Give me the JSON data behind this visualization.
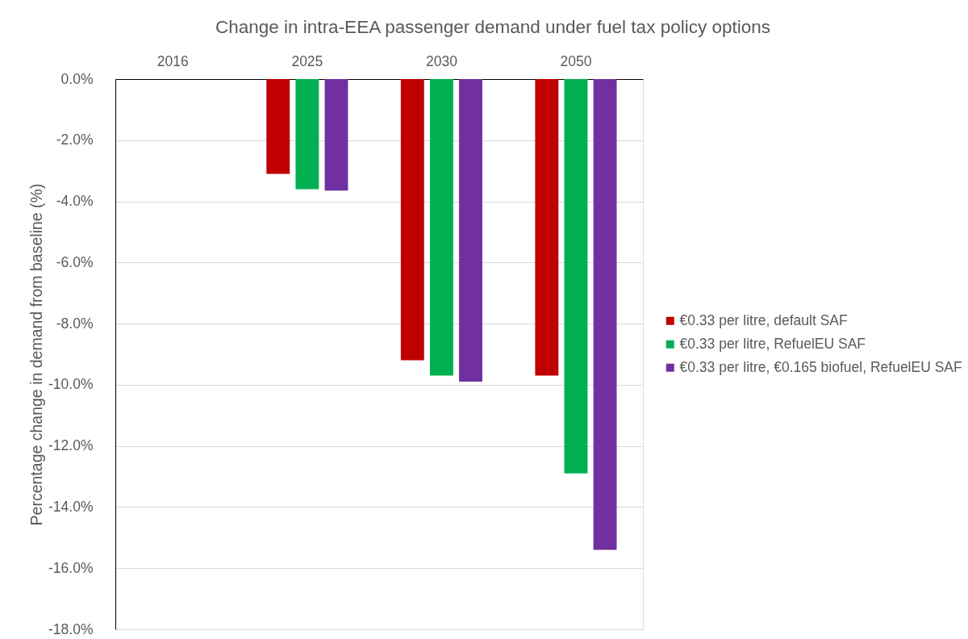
{
  "chart_data": {
    "type": "bar",
    "title": "Change in intra-EEA passenger demand under fuel tax policy options",
    "ylabel": "Percentage change in demand from baseline (%)",
    "categories": [
      "2016",
      "2025",
      "2030",
      "2050"
    ],
    "series": [
      {
        "name": "€0.33 per litre, default SAF",
        "color": "#c00000",
        "values": [
          null,
          -3.1,
          -9.2,
          -9.7
        ]
      },
      {
        "name": "€0.33 per litre, RefuelEU SAF",
        "color": "#00b050",
        "values": [
          null,
          -3.6,
          -9.7,
          -12.9
        ]
      },
      {
        "name": "€0.33 per litre, €0.165 biofuel, RefuelEU SAF",
        "color": "#7030a0",
        "values": [
          null,
          -3.65,
          -9.9,
          -15.4
        ]
      }
    ],
    "ylim": [
      -18,
      0
    ],
    "yticks": [
      {
        "value": 0,
        "label": "0.0%"
      },
      {
        "value": -2,
        "label": "-2.0%"
      },
      {
        "value": -4,
        "label": "-4.0%"
      },
      {
        "value": -6,
        "label": "-6.0%"
      },
      {
        "value": -8,
        "label": "-8.0%"
      },
      {
        "value": -10,
        "label": "-10.0%"
      },
      {
        "value": -12,
        "label": "-12.0%"
      },
      {
        "value": -14,
        "label": "-14.0%"
      },
      {
        "value": -16,
        "label": "-16.0%"
      },
      {
        "value": -18,
        "label": "-18.0%"
      }
    ],
    "grid": "y",
    "legend": "right"
  }
}
